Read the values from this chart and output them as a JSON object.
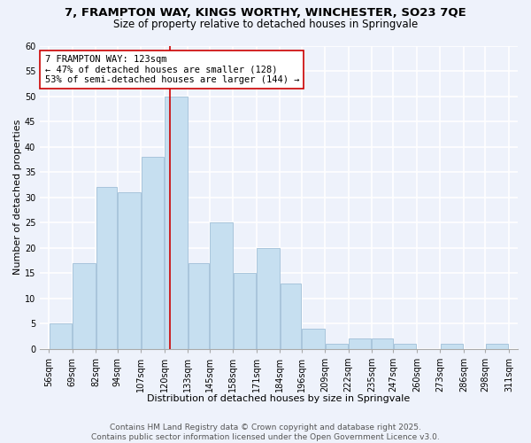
{
  "title": "7, FRAMPTON WAY, KINGS WORTHY, WINCHESTER, SO23 7QE",
  "subtitle": "Size of property relative to detached houses in Springvale",
  "xlabel": "Distribution of detached houses by size in Springvale",
  "ylabel": "Number of detached properties",
  "bin_edges": [
    56,
    69,
    82,
    94,
    107,
    120,
    133,
    145,
    158,
    171,
    184,
    196,
    209,
    222,
    235,
    247,
    260,
    273,
    286,
    298,
    311
  ],
  "counts": [
    5,
    17,
    32,
    31,
    38,
    50,
    17,
    25,
    15,
    20,
    13,
    4,
    1,
    2,
    2,
    1,
    0,
    1,
    0,
    1
  ],
  "bar_color": "#c6dff0",
  "bar_edge_color": "#a0bfd8",
  "vline_x": 123,
  "vline_color": "#cc0000",
  "annotation_line1": "7 FRAMPTON WAY: 123sqm",
  "annotation_line2": "← 47% of detached houses are smaller (128)",
  "annotation_line3": "53% of semi-detached houses are larger (144) →",
  "annotation_box_color": "#ffffff",
  "annotation_box_edge": "#cc0000",
  "ylim": [
    0,
    60
  ],
  "yticks": [
    0,
    5,
    10,
    15,
    20,
    25,
    30,
    35,
    40,
    45,
    50,
    55,
    60
  ],
  "background_color": "#eef2fb",
  "grid_color": "#ffffff",
  "footer_line1": "Contains HM Land Registry data © Crown copyright and database right 2025.",
  "footer_line2": "Contains public sector information licensed under the Open Government Licence v3.0.",
  "title_fontsize": 9.5,
  "subtitle_fontsize": 8.5,
  "xlabel_fontsize": 8,
  "ylabel_fontsize": 8,
  "tick_label_fontsize": 7,
  "annotation_fontsize": 7.5,
  "footer_fontsize": 6.5
}
